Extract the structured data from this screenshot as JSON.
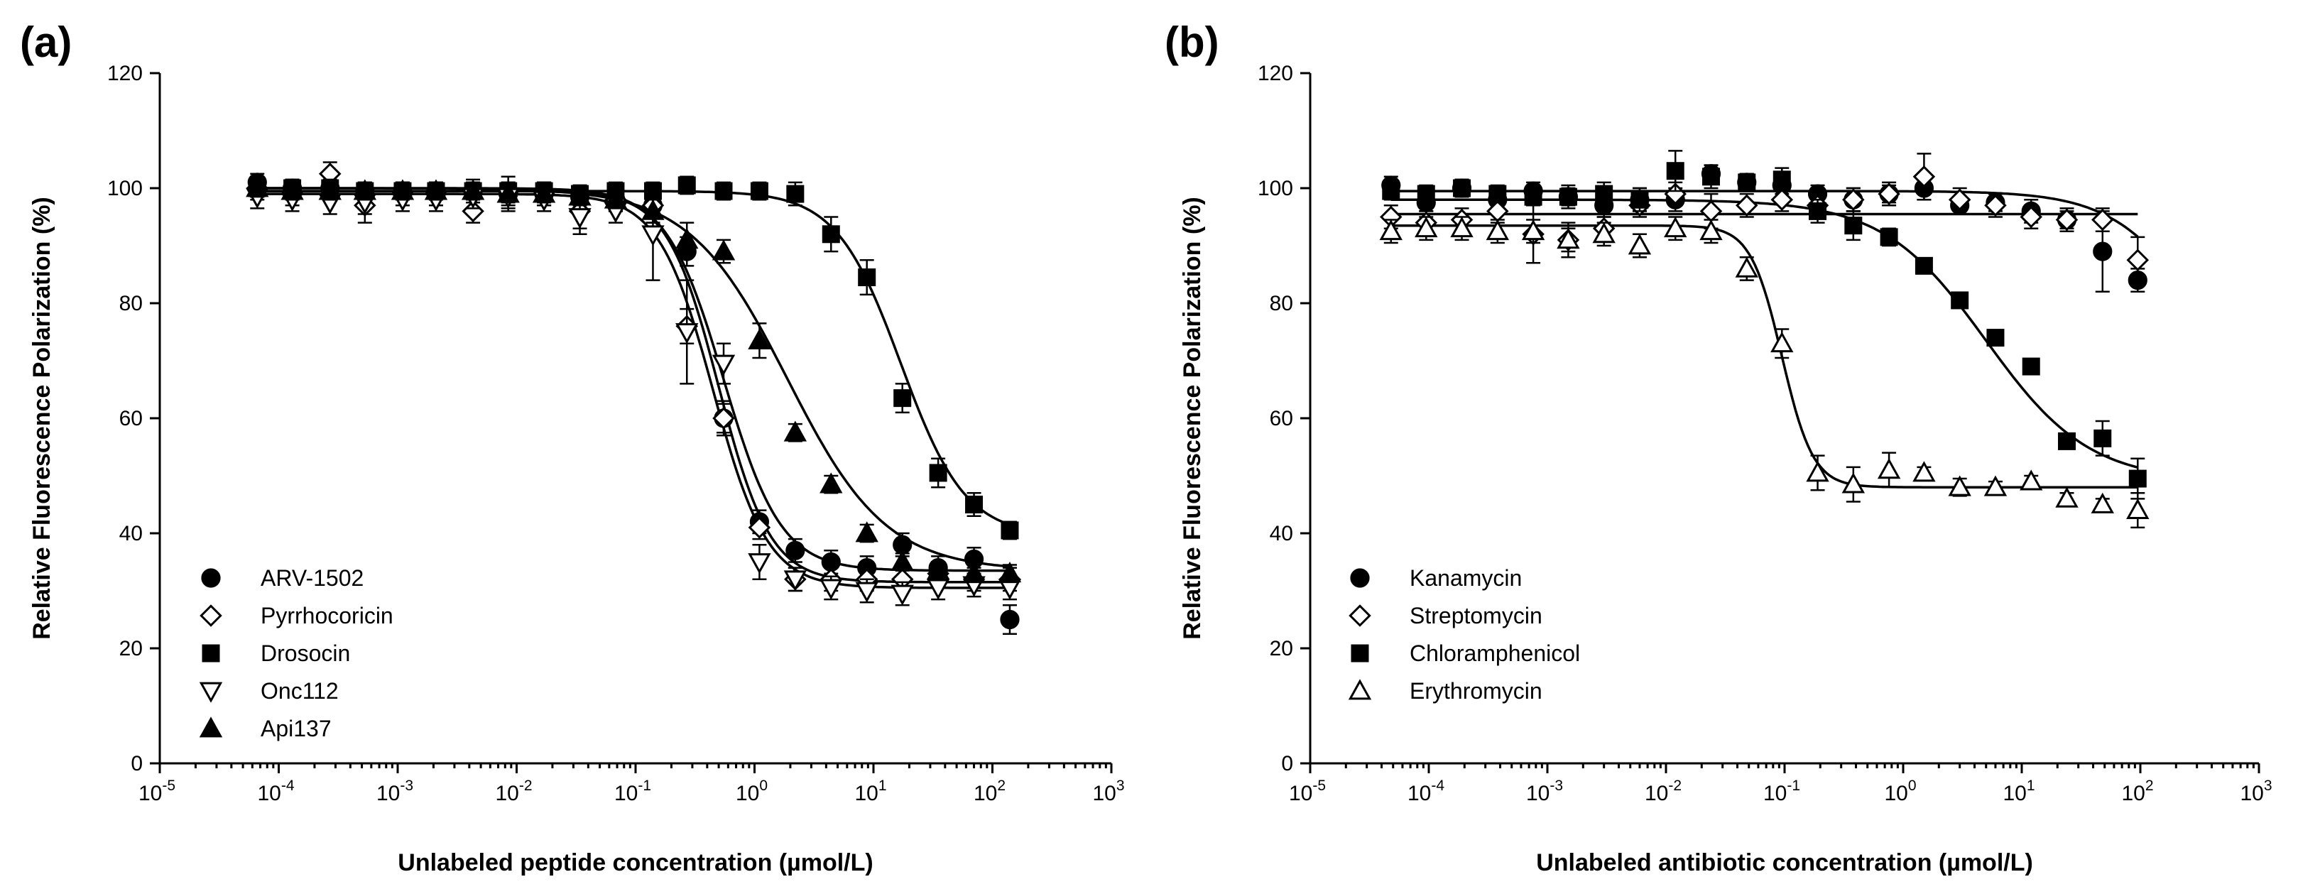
{
  "chart_data": [
    {
      "panel_label": "(a)",
      "type": "scatter",
      "xscale": "log",
      "xlim_exp": [
        -5,
        3
      ],
      "x_tick_exponents": [
        -5,
        -4,
        -3,
        -2,
        -1,
        0,
        1,
        2,
        3
      ],
      "x_tick_base": "10",
      "ylim": [
        0,
        120
      ],
      "y_ticks": [
        0,
        20,
        40,
        60,
        80,
        100,
        120
      ],
      "xlabel": "Unlabeled peptide concentration (µmol/L)",
      "ylabel": "Relative Fluorescence Polarization (%)",
      "legend_position": "bottom-left",
      "series": [
        {
          "name": "ARV-1502",
          "marker": "circle",
          "fill": "black",
          "fit": {
            "top": 100,
            "bottom": 33.5,
            "ec50": 0.55,
            "hill": 1.8
          },
          "x": [
            6.6e-05,
            0.00013,
            0.00027,
            0.00053,
            0.0011,
            0.0021,
            0.0043,
            0.0085,
            0.017,
            0.034,
            0.068,
            0.14,
            0.27,
            0.55,
            1.1,
            2.2,
            4.4,
            8.8,
            17.5,
            35,
            70,
            140
          ],
          "y": [
            101,
            100,
            100,
            99.5,
            99.5,
            99.5,
            99.5,
            99,
            99,
            98.5,
            98,
            97,
            89,
            60,
            42,
            37,
            35,
            34,
            38,
            34,
            35.5,
            25
          ],
          "err": [
            1.5,
            1.5,
            2,
            1,
            1.5,
            1.5,
            2,
            2,
            2,
            2,
            2,
            3,
            2.5,
            2.5,
            2,
            2,
            2,
            2,
            2,
            2,
            2,
            2.5
          ]
        },
        {
          "name": "Pyrrhocoricin",
          "marker": "diamond",
          "fill": "white",
          "fit": {
            "top": 99.5,
            "bottom": 31.5,
            "ec50": 0.5,
            "hill": 2.0
          },
          "x": [
            6.6e-05,
            0.00013,
            0.00027,
            0.00053,
            0.0011,
            0.0021,
            0.0043,
            0.0085,
            0.017,
            0.034,
            0.068,
            0.14,
            0.27,
            0.55,
            1.1,
            2.2,
            4.4,
            8.8,
            17.5,
            35,
            70,
            140
          ],
          "y": [
            100,
            99,
            102.5,
            97,
            99,
            99,
            96,
            99,
            99,
            96,
            98,
            97,
            76,
            60,
            41,
            32,
            32,
            32,
            32,
            33,
            32,
            32
          ],
          "err": [
            2,
            2,
            2,
            3,
            2,
            2,
            2,
            3,
            2,
            3,
            2,
            3,
            3,
            3,
            2,
            2,
            2,
            2,
            2,
            2,
            2,
            2
          ]
        },
        {
          "name": "Drosocin",
          "marker": "square",
          "fill": "black",
          "fit": {
            "top": 99.5,
            "bottom": 39.5,
            "ec50": 17,
            "hill": 1.6
          },
          "x": [
            6.6e-05,
            0.00013,
            0.00027,
            0.00053,
            0.0011,
            0.0021,
            0.0043,
            0.0085,
            0.017,
            0.034,
            0.068,
            0.14,
            0.27,
            0.55,
            1.1,
            2.2,
            4.4,
            8.8,
            17.5,
            35,
            70,
            140
          ],
          "y": [
            100,
            100,
            100,
            99.5,
            99.5,
            99.5,
            99.5,
            99.5,
            99.5,
            99,
            99.5,
            99.5,
            100.5,
            99.5,
            99.5,
            99,
            92,
            84.5,
            63.5,
            50.5,
            45,
            40.5
          ],
          "err": [
            1.5,
            1.5,
            1.5,
            1.5,
            1.5,
            1.5,
            1.5,
            1.5,
            1.5,
            1.5,
            1.5,
            1.5,
            1.5,
            1.5,
            1.5,
            2,
            3,
            3,
            2.5,
            2.5,
            2,
            1.5
          ]
        },
        {
          "name": "Onc112",
          "marker": "triangle-down",
          "fill": "white",
          "fit": {
            "top": 99,
            "bottom": 30.5,
            "ec50": 0.45,
            "hill": 1.9
          },
          "x": [
            6.6e-05,
            0.00013,
            0.00027,
            0.00053,
            0.0011,
            0.0021,
            0.0043,
            0.0085,
            0.017,
            0.034,
            0.068,
            0.14,
            0.27,
            0.55,
            1.1,
            2.2,
            4.4,
            8.8,
            17.5,
            35,
            70,
            140
          ],
          "y": [
            98.5,
            98,
            97.5,
            97.5,
            98,
            98,
            98.5,
            98.5,
            98,
            95,
            96,
            92,
            75,
            69.5,
            35,
            32,
            30.5,
            30,
            29.5,
            30.5,
            31,
            30.5
          ],
          "err": [
            2,
            2,
            2,
            2,
            2,
            2,
            2,
            2,
            2,
            3,
            2,
            8,
            9,
            3.5,
            3,
            2,
            2,
            2,
            2,
            2,
            2,
            2
          ]
        },
        {
          "name": "Api137",
          "marker": "triangle-up",
          "fill": "black",
          "fit": {
            "top": 100,
            "bottom": 33.5,
            "ec50": 1.9,
            "hill": 1.05
          },
          "x": [
            6.6e-05,
            0.00013,
            0.00027,
            0.00053,
            0.0011,
            0.0021,
            0.0043,
            0.0085,
            0.017,
            0.034,
            0.068,
            0.14,
            0.27,
            0.55,
            1.1,
            2.2,
            4.4,
            8.8,
            17.5,
            35,
            70,
            140
          ],
          "y": [
            100,
            99.5,
            99.5,
            99.5,
            99.5,
            99.5,
            99.5,
            99,
            99,
            98.5,
            98,
            96,
            91,
            89,
            73.5,
            57.5,
            48.5,
            40,
            35,
            33.5,
            33,
            33
          ],
          "err": [
            1.5,
            1.5,
            1.5,
            1.5,
            1.5,
            1.5,
            1.5,
            1.5,
            1.5,
            1.5,
            1.5,
            2,
            3,
            2,
            3,
            1.5,
            1.5,
            1.5,
            1.5,
            1.5,
            1.5,
            1.5
          ]
        }
      ]
    },
    {
      "panel_label": "(b)",
      "type": "scatter",
      "xscale": "log",
      "xlim_exp": [
        -5,
        3
      ],
      "x_tick_exponents": [
        -5,
        -4,
        -3,
        -2,
        -1,
        0,
        1,
        2,
        3
      ],
      "x_tick_base": "10",
      "ylim": [
        0,
        120
      ],
      "y_ticks": [
        0,
        20,
        40,
        60,
        80,
        100,
        120
      ],
      "xlabel": "Unlabeled antibiotic concentration (µmol/L)",
      "ylabel": "Relative Fluorescence Polarization (%)",
      "legend_position": "bottom-left",
      "series": [
        {
          "name": "Kanamycin",
          "marker": "circle",
          "fill": "black",
          "fit": {
            "top": 99.5,
            "bottom": 60,
            "ec50": 300,
            "hill": 1.2
          },
          "x": [
            4.8e-05,
            9.5e-05,
            0.00019,
            0.00038,
            0.00076,
            0.0015,
            0.003,
            0.006,
            0.012,
            0.024,
            0.048,
            0.095,
            0.19,
            0.38,
            0.76,
            1.5,
            3,
            6,
            12,
            24,
            48,
            95
          ],
          "y": [
            100.5,
            97.5,
            100,
            98,
            99.5,
            98.5,
            97,
            98,
            98,
            102.5,
            101,
            100.5,
            99,
            98,
            99,
            100,
            97,
            97.5,
            96,
            94.5,
            89,
            84
          ],
          "err": [
            1.5,
            1.5,
            1.5,
            2,
            1.5,
            2,
            2,
            2,
            2,
            1.5,
            1.5,
            1.5,
            1.5,
            2,
            1.5,
            2,
            1.5,
            1.5,
            2,
            1.5,
            7,
            2
          ]
        },
        {
          "name": "Streptomycin",
          "marker": "diamond",
          "fill": "white",
          "fit": {
            "top": 95.5,
            "bottom": 95.5,
            "ec50": 1,
            "hill": 1
          },
          "x": [
            4.8e-05,
            9.5e-05,
            0.00019,
            0.00038,
            0.00076,
            0.0015,
            0.003,
            0.006,
            0.012,
            0.024,
            0.048,
            0.095,
            0.19,
            0.38,
            0.76,
            1.5,
            3,
            6,
            12,
            24,
            48,
            95
          ],
          "y": [
            95,
            94,
            94.5,
            96,
            92,
            91,
            93,
            97,
            99,
            96,
            97,
            98,
            97,
            98,
            99,
            102,
            98,
            97,
            95,
            94.5,
            94.5,
            87.5
          ],
          "err": [
            2,
            2,
            2,
            2,
            5,
            3,
            2,
            2,
            2,
            3,
            2,
            2,
            2,
            2,
            2,
            4,
            2,
            2,
            2,
            2,
            2,
            4
          ]
        },
        {
          "name": "Chloramphenicol",
          "marker": "square",
          "fill": "black",
          "fit": {
            "top": 98,
            "bottom": 49,
            "ec50": 5,
            "hill": 1.0
          },
          "x": [
            4.8e-05,
            9.5e-05,
            0.00019,
            0.00038,
            0.00076,
            0.0015,
            0.003,
            0.006,
            0.012,
            0.024,
            0.048,
            0.095,
            0.19,
            0.38,
            0.76,
            1.5,
            3,
            6,
            12,
            24,
            48,
            95
          ],
          "y": [
            99.5,
            99,
            100,
            99,
            98.5,
            98.5,
            99,
            98,
            103,
            102,
            101,
            101.5,
            96,
            93.5,
            91.5,
            86.5,
            80.5,
            74,
            69,
            56,
            56.5,
            49.5
          ],
          "err": [
            1.5,
            1.5,
            1.5,
            1.5,
            1.5,
            1.5,
            2,
            2,
            3.5,
            2,
            1.5,
            2,
            2,
            2.5,
            1.5,
            1,
            1,
            1,
            1,
            1,
            3,
            3.5
          ]
        },
        {
          "name": "Erythromycin",
          "marker": "triangle-up",
          "fill": "white",
          "fit": {
            "top": 93.5,
            "bottom": 48,
            "ec50": 0.095,
            "hill": 3.3
          },
          "x": [
            4.8e-05,
            9.5e-05,
            0.00019,
            0.00038,
            0.00076,
            0.0015,
            0.003,
            0.006,
            0.012,
            0.024,
            0.048,
            0.095,
            0.19,
            0.38,
            0.76,
            1.5,
            3,
            6,
            12,
            24,
            48,
            95
          ],
          "y": [
            92.5,
            93,
            93,
            92.5,
            92.5,
            91,
            92,
            90,
            93,
            92.5,
            86,
            73,
            50.5,
            48.5,
            51,
            50.5,
            48,
            48,
            49,
            46,
            45,
            44
          ],
          "err": [
            2,
            2,
            2,
            2,
            2,
            2,
            2,
            2,
            2,
            2,
            2,
            2.5,
            3,
            3,
            3,
            1,
            1.5,
            1,
            1,
            1,
            1,
            3
          ]
        }
      ]
    }
  ]
}
